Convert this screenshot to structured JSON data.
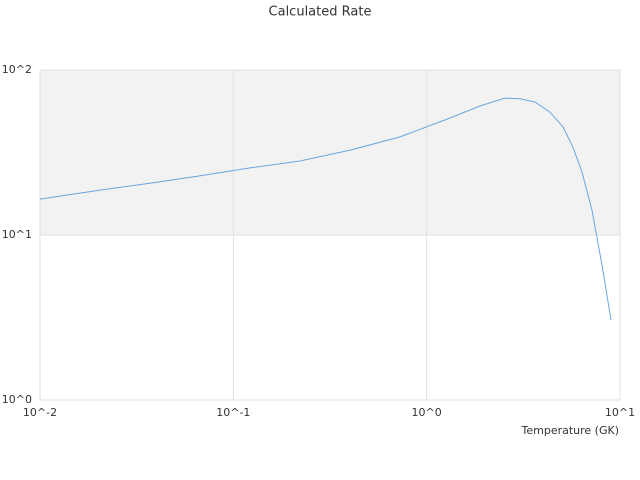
{
  "chart_data": {
    "type": "line",
    "title": "Calculated Rate",
    "x_label": "Temperature (GK)",
    "x": [
      0.01,
      0.0204,
      0.037,
      0.067,
      0.122,
      0.221,
      0.402,
      0.728,
      1.32,
      1.89,
      2.54,
      3.04,
      3.63,
      4.34,
      5.07,
      5.71,
      6.36,
      7.16,
      8.07,
      8.98
    ],
    "series": [
      {
        "color": "#6aa7e0",
        "values": [
          16.5,
          18.7,
          20.6,
          22.8,
          25.5,
          28.1,
          32.7,
          39.3,
          51.2,
          60.5,
          67.6,
          67,
          64,
          55.6,
          45.2,
          34.1,
          24.1,
          14.2,
          6.58,
          3.05
        ]
      }
    ],
    "xscale": "log",
    "yscale": "log",
    "xlim": [
      0.01,
      10
    ],
    "ylim": [
      1,
      100
    ],
    "xticks": [
      {
        "value": 0.01,
        "label": "10^-2"
      },
      {
        "value": 0.1,
        "label": "10^-1"
      },
      {
        "value": 1,
        "label": "10^0"
      },
      {
        "value": 10,
        "label": "10^1"
      }
    ],
    "yticks": [
      {
        "value": 1,
        "label": "10^0"
      },
      {
        "value": 10,
        "label": "10^1"
      },
      {
        "value": 100,
        "label": "10^2"
      }
    ],
    "grid": true,
    "bands": true
  }
}
